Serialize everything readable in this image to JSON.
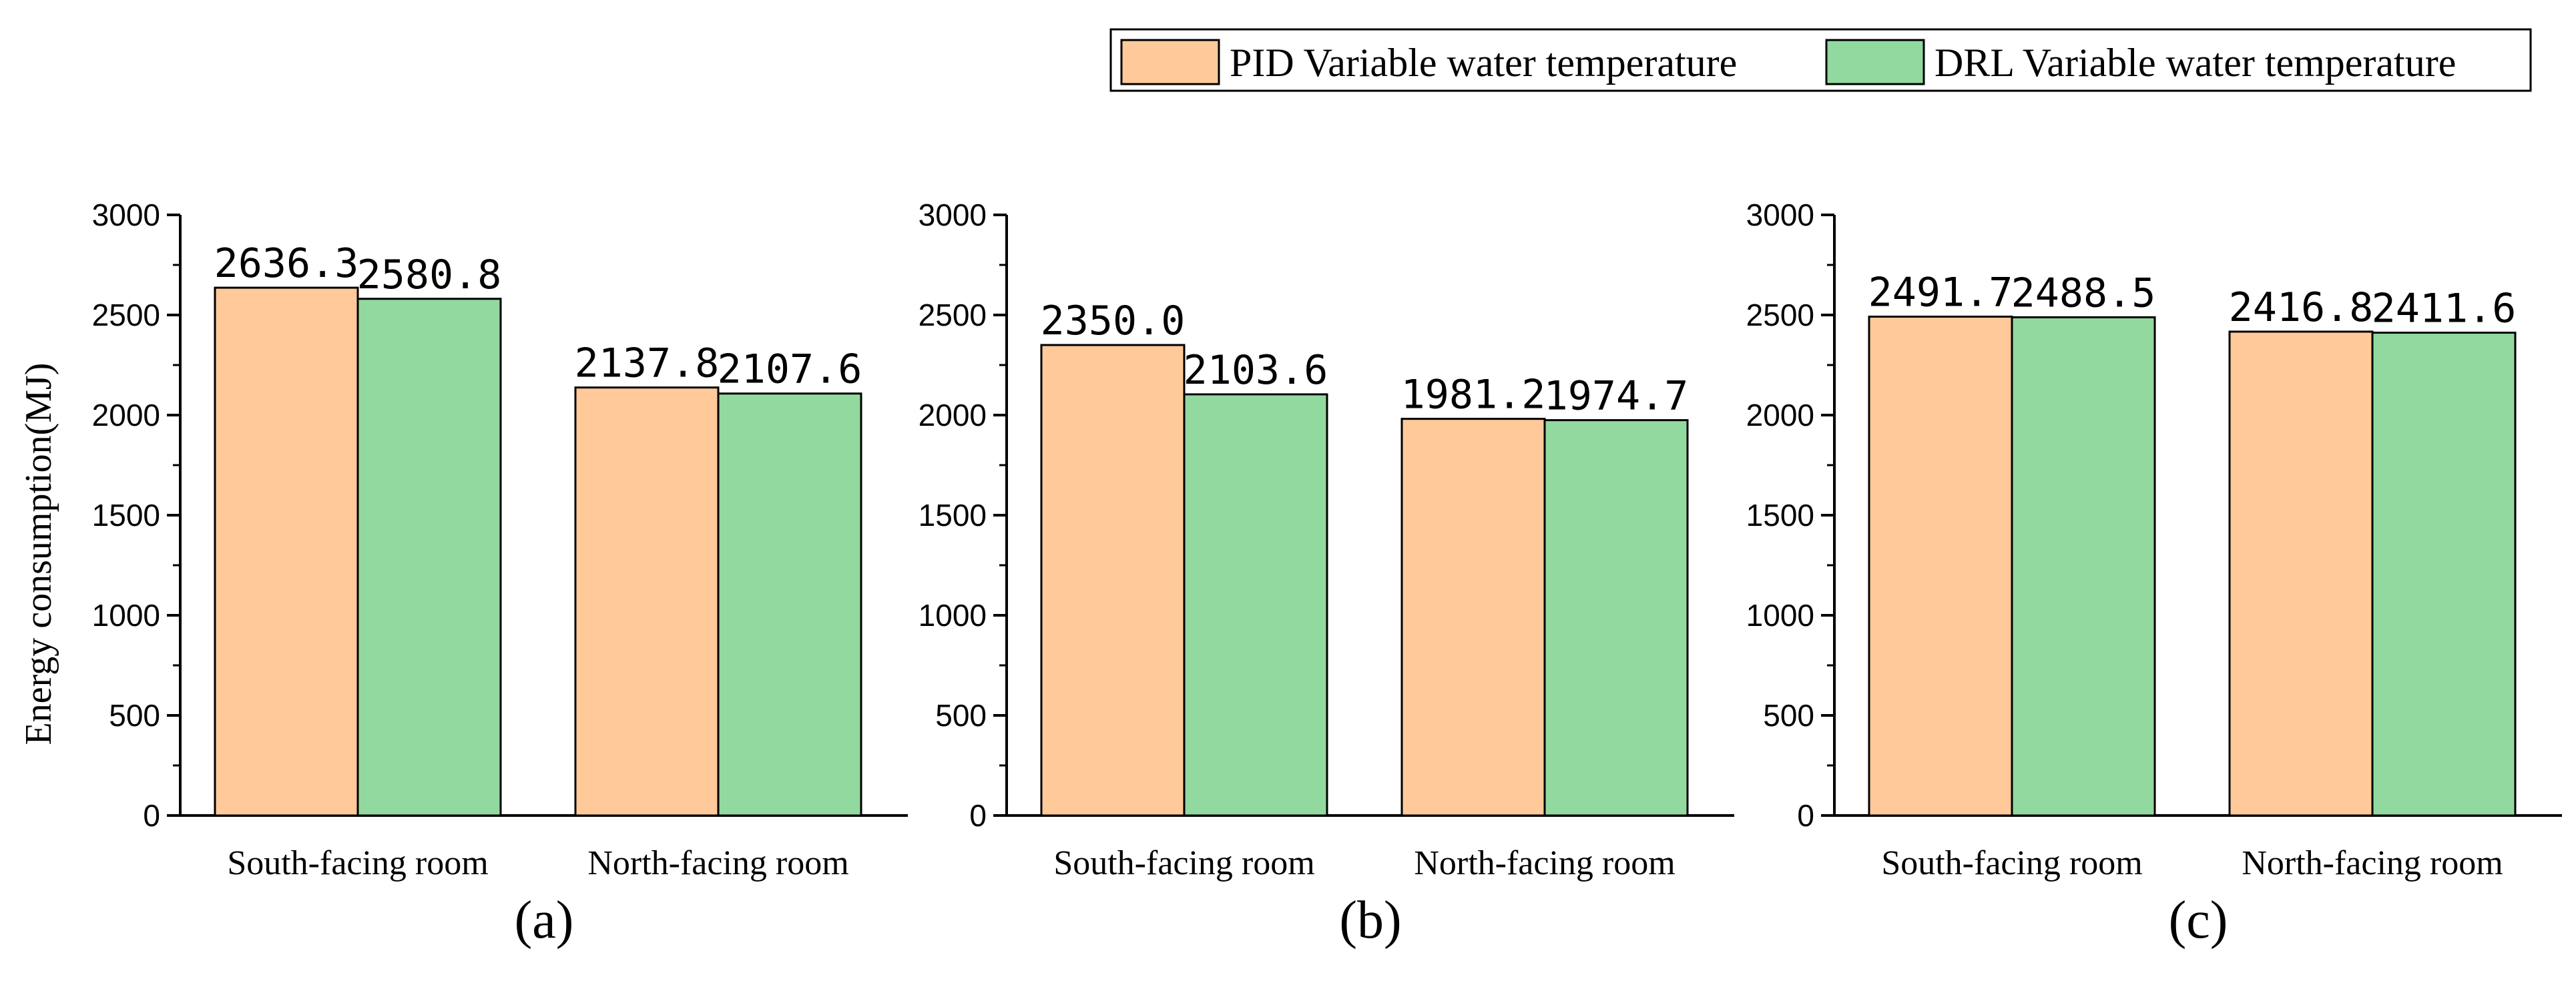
{
  "legend": {
    "entries": [
      {
        "name": "PID Variable water temperature",
        "color": "#FFC99A"
      },
      {
        "name": "DRL Variable water temperature",
        "color": "#92D9A0"
      }
    ]
  },
  "ylabel": "Energy consumption(MJ)",
  "chart_data": [
    {
      "type": "bar",
      "panel_label": "(a)",
      "categories": [
        "South-facing room",
        "North-facing room"
      ],
      "series": [
        {
          "name": "PID Variable water temperature",
          "values": [
            2636.3,
            2137.8
          ],
          "labels": [
            "2636.3",
            "2137.8"
          ]
        },
        {
          "name": "DRL Variable water temperature",
          "values": [
            2580.8,
            2107.6
          ],
          "labels": [
            "2580.8",
            "2107.6"
          ]
        }
      ],
      "ylabel": "Energy consumption(MJ)",
      "ylim": [
        0,
        3000
      ],
      "yticks": [
        "0",
        "500",
        "1000",
        "1500",
        "2000",
        "2500",
        "3000"
      ]
    },
    {
      "type": "bar",
      "panel_label": "(b)",
      "categories": [
        "South-facing room",
        "North-facing room"
      ],
      "series": [
        {
          "name": "PID Variable water temperature",
          "values": [
            2350.0,
            1981.2
          ],
          "labels": [
            "2350.0",
            "1981.2"
          ]
        },
        {
          "name": "DRL Variable water temperature",
          "values": [
            2103.6,
            1974.7
          ],
          "labels": [
            "2103.6",
            "1974.7"
          ]
        }
      ],
      "ylabel": "",
      "ylim": [
        0,
        3000
      ],
      "yticks": [
        "0",
        "500",
        "1000",
        "1500",
        "2000",
        "2500",
        "3000"
      ]
    },
    {
      "type": "bar",
      "panel_label": "(c)",
      "categories": [
        "South-facing room",
        "North-facing room"
      ],
      "series": [
        {
          "name": "PID Variable water temperature",
          "values": [
            2491.7,
            2416.8
          ],
          "labels": [
            "2491.7",
            "2416.8"
          ]
        },
        {
          "name": "DRL Variable water temperature",
          "values": [
            2488.5,
            2411.6
          ],
          "labels": [
            "2488.5",
            "2411.6"
          ]
        }
      ],
      "ylabel": "",
      "ylim": [
        0,
        3000
      ],
      "yticks": [
        "0",
        "500",
        "1000",
        "1500",
        "2000",
        "2500",
        "3000"
      ]
    }
  ]
}
